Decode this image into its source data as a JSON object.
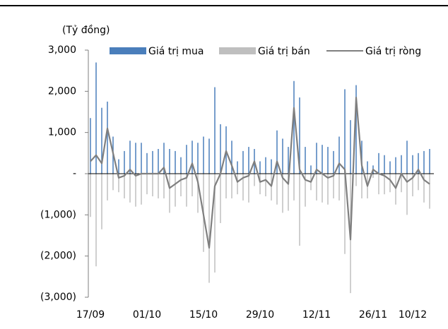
{
  "chart_data": {
    "type": "bar_line",
    "y_label": "(Tỷ đồng)",
    "categories": [
      "17/09",
      null,
      null,
      null,
      null,
      null,
      null,
      null,
      null,
      null,
      "01/10",
      null,
      null,
      null,
      null,
      null,
      null,
      null,
      null,
      null,
      "15/10",
      null,
      null,
      null,
      null,
      null,
      null,
      null,
      null,
      null,
      "29/10",
      null,
      null,
      null,
      null,
      null,
      null,
      null,
      null,
      null,
      "12/11",
      null,
      null,
      null,
      null,
      null,
      null,
      null,
      null,
      null,
      "26/11",
      null,
      null,
      null,
      null,
      null,
      null,
      "10/12",
      null,
      null,
      null
    ],
    "ylim": [
      -3000,
      3000
    ],
    "yticks": [
      {
        "value": 3000,
        "label": "3,000"
      },
      {
        "value": 2000,
        "label": "2,000"
      },
      {
        "value": 1000,
        "label": "1,000"
      },
      {
        "value": 0,
        "label": "-"
      },
      {
        "value": -1000,
        "label": "(1,000)"
      },
      {
        "value": -2000,
        "label": "(2,000)"
      },
      {
        "value": -3000,
        "label": "(3,000)"
      }
    ],
    "legend": "top",
    "series": [
      {
        "name": "Giá trị mua",
        "type": "bar",
        "color": "#4a7ebb",
        "values": [
          1350,
          2700,
          1600,
          1750,
          900,
          350,
          550,
          800,
          750,
          750,
          500,
          550,
          600,
          750,
          600,
          550,
          400,
          700,
          800,
          750,
          900,
          850,
          2100,
          1200,
          1150,
          800,
          300,
          550,
          650,
          600,
          300,
          400,
          350,
          1050,
          850,
          650,
          2250,
          1850,
          650,
          200,
          750,
          700,
          650,
          550,
          900,
          2050,
          1300,
          2150,
          800,
          300,
          200,
          500,
          450,
          300,
          400,
          450,
          800,
          450,
          500,
          550,
          600
        ]
      },
      {
        "name": "Giá trị bán",
        "type": "bar",
        "color": "#bfbfbf",
        "values": [
          -1050,
          -2250,
          -1350,
          -650,
          -400,
          -450,
          -600,
          -700,
          -800,
          -750,
          -500,
          -550,
          -600,
          -600,
          -950,
          -800,
          -550,
          -800,
          -550,
          -950,
          -1900,
          -2650,
          -2400,
          -1200,
          -600,
          -600,
          -500,
          -650,
          -700,
          -300,
          -500,
          -550,
          -650,
          -750,
          -950,
          -900,
          -650,
          -1750,
          -800,
          -400,
          -650,
          -700,
          -750,
          -600,
          -650,
          -1950,
          -2900,
          -300,
          -600,
          -600,
          -100,
          -500,
          -500,
          -450,
          -750,
          -450,
          -1000,
          -550,
          -400,
          -700,
          -850
        ]
      },
      {
        "name": "Giá trị ròng",
        "type": "line",
        "color": "#7f7f7f",
        "values": [
          300,
          450,
          250,
          1100,
          500,
          -100,
          -50,
          100,
          -50,
          0,
          0,
          0,
          0,
          150,
          -350,
          -250,
          -150,
          -100,
          250,
          -200,
          -1000,
          -1800,
          -300,
          0,
          550,
          200,
          -200,
          -100,
          -50,
          300,
          -200,
          -150,
          -300,
          300,
          -100,
          -250,
          1600,
          100,
          -150,
          -200,
          100,
          0,
          -100,
          -50,
          250,
          100,
          -1600,
          1850,
          200,
          -300,
          100,
          0,
          -50,
          -150,
          -350,
          0,
          -200,
          -100,
          100,
          -150,
          -250
        ]
      }
    ]
  }
}
